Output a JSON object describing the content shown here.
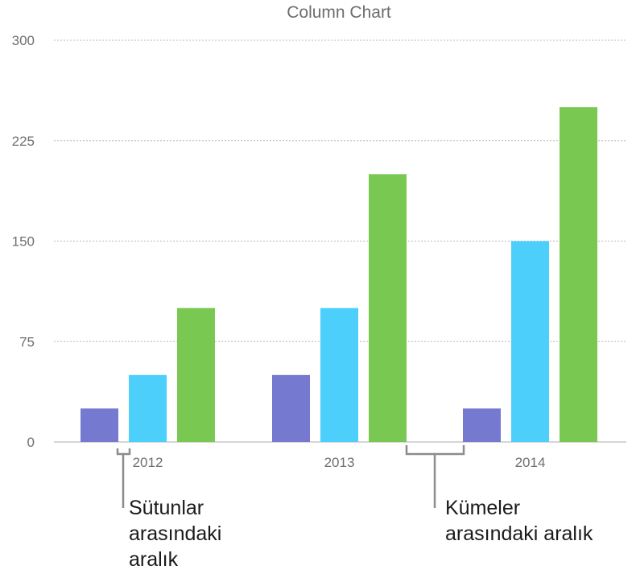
{
  "chart_data": {
    "type": "bar",
    "title": "Column Chart",
    "categories": [
      "2012",
      "2013",
      "2014"
    ],
    "series": [
      {
        "values": [
          25,
          50,
          25
        ],
        "color": "#7579cf"
      },
      {
        "values": [
          50,
          100,
          150
        ],
        "color": "#4dcffc"
      },
      {
        "values": [
          100,
          200,
          250
        ],
        "color": "#78c852"
      }
    ],
    "ylim": [
      0,
      300
    ],
    "yticks": [
      0,
      75,
      150,
      225,
      300
    ],
    "grid": true,
    "legend": "none"
  },
  "callouts": {
    "bar_gap": [
      "Sütunlar",
      "arasındaki",
      "aralık"
    ],
    "cluster_gap": [
      "Kümeler",
      "arasındaki aralık"
    ]
  }
}
